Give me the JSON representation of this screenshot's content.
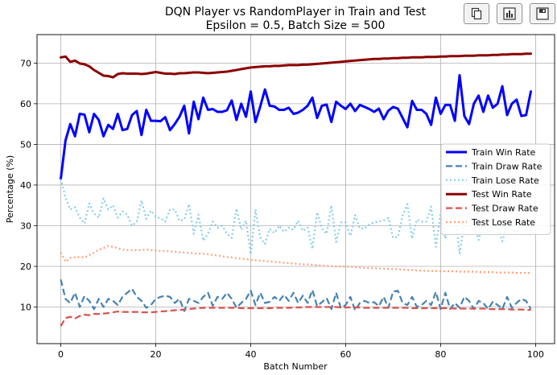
{
  "toolbar": {
    "buttons": [
      {
        "name": "copy-icon"
      },
      {
        "name": "bar-chart-icon"
      },
      {
        "name": "save-icon"
      }
    ]
  },
  "chart_data": {
    "type": "line",
    "title_line1": "DQN Player vs RandomPlayer in Train and Test",
    "title_line2": "Epsilon = 0.5, Batch Size = 500",
    "xlabel": "Batch Number",
    "ylabel": "Percentage (%)",
    "xlim": [
      -5,
      104
    ],
    "ylim": [
      1,
      77
    ],
    "xticks": [
      0,
      20,
      40,
      60,
      80,
      100
    ],
    "yticks": [
      10,
      20,
      30,
      40,
      50,
      60,
      70
    ],
    "grid": true,
    "legend_position": "right-center",
    "series": [
      {
        "name": "Train Win Rate",
        "color": "#0000ff",
        "style": "solid",
        "width": 3,
        "values": [
          41.5,
          51,
          55,
          52,
          57.5,
          57.3,
          53,
          57.5,
          56,
          52,
          54.8,
          53.8,
          57.5,
          53.5,
          53.8,
          57.2,
          58.2,
          52.3,
          58.5,
          55.8,
          55.8,
          55.7,
          56.7,
          53.5,
          55,
          56.8,
          59.5,
          52.7,
          60.5,
          56.2,
          61.5,
          58.5,
          58.7,
          58,
          58,
          58.4,
          60.8,
          56,
          60,
          56.8,
          63,
          55.5,
          59.3,
          63.5,
          59.5,
          59.3,
          58.5,
          58.5,
          59,
          57.5,
          57.8,
          58.5,
          59.5,
          61.5,
          56.5,
          59.5,
          59.8,
          55.5,
          60.5,
          59.5,
          58.7,
          60,
          58.2,
          59.7,
          59.2,
          58.7,
          58,
          58.8,
          56.2,
          58.3,
          59.2,
          58.8,
          56.5,
          54.2,
          60.7,
          58.5,
          58.5,
          57.5,
          54.8,
          61.5,
          57.5,
          59.7,
          59.7,
          55.8,
          67,
          57,
          55,
          60,
          62,
          58,
          62,
          59,
          60,
          64.3,
          57.2,
          60,
          61,
          57,
          57.2,
          63
        ]
      },
      {
        "name": "Train Draw Rate",
        "color": "#4682b4",
        "style": "dashed",
        "width": 2.2,
        "values": [
          16.8,
          12,
          11,
          13.5,
          10,
          12.7,
          11.5,
          9.5,
          12,
          10,
          12,
          11.5,
          10.5,
          12.5,
          13.5,
          14.5,
          12.5,
          11.5,
          9.8,
          10.5,
          12,
          12.5,
          12.8,
          12.5,
          11,
          12,
          9,
          12,
          11.5,
          11,
          12.5,
          13.5,
          10.3,
          12.5,
          12,
          13.5,
          12,
          9.8,
          11,
          12,
          14,
          10.5,
          13.5,
          11,
          11.3,
          12.5,
          11.5,
          13,
          11.5,
          13.5,
          11,
          12.8,
          11,
          14.2,
          10.2,
          11.2,
          12.2,
          9.5,
          13.5,
          9.7,
          10.5,
          12.5,
          9.2,
          11,
          11.5,
          11,
          11.2,
          10.2,
          12.5,
          9.8,
          13.8,
          14,
          11,
          10.5,
          12.5,
          10,
          10.5,
          11.5,
          10.5,
          13.7,
          9.5,
          13.5,
          9.5,
          11,
          9.8,
          12.5,
          11.5,
          9.5,
          11.5,
          11,
          9.5,
          11.3,
          10.5,
          9.5,
          12.5,
          9.8,
          11,
          12,
          11.5,
          9.5
        ]
      },
      {
        "name": "Train Lose Rate",
        "color": "#87ceeb",
        "style": "dotted",
        "width": 2.2,
        "values": [
          41.5,
          37,
          34,
          34.5,
          32,
          30.5,
          35.5,
          33,
          32,
          36.7,
          34,
          35,
          32,
          33.5,
          32.7,
          30,
          31,
          36.2,
          31.7,
          33.7,
          32.2,
          31.8,
          31,
          34,
          34,
          31.2,
          31.5,
          35.3,
          28,
          32.7,
          26.3,
          28,
          31,
          29.5,
          30,
          28,
          27,
          34.2,
          29,
          31.2,
          23,
          34,
          27.2,
          25.5,
          29.2,
          28.2,
          30,
          28.5,
          29.5,
          29,
          31.2,
          28.7,
          29.5,
          24.3,
          33.3,
          29.3,
          28,
          35,
          26,
          30.8,
          30.8,
          27.5,
          32.6,
          29.3,
          29.3,
          30.3,
          30.8,
          31,
          31.3,
          31.9,
          27,
          27.2,
          32.5,
          35.3,
          26.8,
          31.5,
          31,
          31,
          34.7,
          24.8,
          33,
          26.8,
          30.8,
          33.2,
          23.2,
          30.5,
          33.5,
          30.5,
          26.5,
          31,
          28.5,
          29.7,
          29.5,
          26.2,
          30.3,
          30.2,
          28,
          31,
          31.3,
          27.5
        ]
      },
      {
        "name": "Test Win Rate",
        "color": "#8b0000",
        "style": "solid",
        "width": 3,
        "values": [
          71.4,
          71.6,
          70.3,
          70.6,
          69.9,
          69.7,
          69.2,
          68.3,
          67.6,
          66.9,
          66.8,
          66.5,
          67.3,
          67.5,
          67.4,
          67.4,
          67.4,
          67.3,
          67.4,
          67.6,
          67.8,
          67.6,
          67.4,
          67.4,
          67.3,
          67.5,
          67.5,
          67.6,
          67.7,
          67.7,
          67.6,
          67.5,
          67.6,
          67.7,
          67.8,
          67.9,
          68.1,
          68.3,
          68.5,
          68.7,
          68.9,
          69,
          69.1,
          69.2,
          69.2,
          69.3,
          69.3,
          69.4,
          69.5,
          69.5,
          69.5,
          69.6,
          69.6,
          69.7,
          69.8,
          69.9,
          70,
          70.1,
          70.2,
          70.3,
          70.4,
          70.5,
          70.6,
          70.7,
          70.8,
          70.9,
          71,
          71,
          71.1,
          71.1,
          71.2,
          71.2,
          71.3,
          71.3,
          71.4,
          71.4,
          71.4,
          71.5,
          71.5,
          71.5,
          71.6,
          71.6,
          71.7,
          71.7,
          71.7,
          71.8,
          71.8,
          71.8,
          71.9,
          71.9,
          71.9,
          72,
          72,
          72.1,
          72.1,
          72.2,
          72.2,
          72.2,
          72.3,
          72.3
        ]
      },
      {
        "name": "Test Draw Rate",
        "color": "#d9534f",
        "style": "dashed",
        "width": 2.2,
        "values": [
          5.3,
          7.3,
          7.6,
          7.2,
          7.8,
          8.1,
          8,
          8.3,
          8.3,
          8.4,
          8.5,
          8.7,
          8.9,
          8.8,
          8.8,
          8.8,
          8.8,
          8.7,
          8.7,
          8.7,
          8.8,
          8.9,
          9,
          9.1,
          9.2,
          9.3,
          9.4,
          9.5,
          9.6,
          9.7,
          9.8,
          9.8,
          9.8,
          9.8,
          9.8,
          9.8,
          9.8,
          9.8,
          9.7,
          9.7,
          9.7,
          9.7,
          9.7,
          9.7,
          9.7,
          9.8,
          9.8,
          9.8,
          9.8,
          9.9,
          9.9,
          9.9,
          10,
          10,
          10,
          10,
          10,
          10,
          10,
          9.9,
          9.9,
          9.9,
          9.9,
          9.9,
          9.8,
          9.8,
          9.8,
          9.8,
          9.8,
          9.8,
          9.8,
          9.8,
          9.8,
          9.8,
          9.7,
          9.7,
          9.7,
          9.7,
          9.7,
          9.7,
          9.7,
          9.7,
          9.7,
          9.6,
          9.6,
          9.6,
          9.6,
          9.6,
          9.6,
          9.6,
          9.5,
          9.5,
          9.5,
          9.5,
          9.5,
          9.4,
          9.4,
          9.4,
          9.3,
          9.3
        ]
      },
      {
        "name": "Test Lose Rate",
        "color": "#ffa07a",
        "style": "dotted",
        "width": 2.2,
        "values": [
          23.4,
          21.1,
          22.1,
          22.2,
          22.3,
          22.2,
          22.8,
          23.4,
          24.1,
          24.5,
          25,
          24.8,
          24.5,
          24.1,
          24,
          24,
          24,
          24,
          24.2,
          24,
          23.9,
          23.8,
          23.8,
          23.7,
          23.6,
          23.5,
          23.4,
          23.3,
          23.2,
          23.1,
          23.1,
          23,
          22.8,
          22.7,
          22.5,
          22.3,
          22.2,
          22,
          21.9,
          21.8,
          21.6,
          21.5,
          21.4,
          21.3,
          21.2,
          21.1,
          21,
          20.9,
          20.8,
          20.7,
          20.6,
          20.5,
          20.5,
          20.4,
          20.3,
          20.2,
          20.1,
          20.1,
          20,
          20,
          19.9,
          19.9,
          19.8,
          19.7,
          19.6,
          19.6,
          19.5,
          19.5,
          19.4,
          19.4,
          19.3,
          19.3,
          19.2,
          19.1,
          19.1,
          19,
          19,
          18.9,
          18.9,
          18.9,
          18.8,
          18.8,
          18.8,
          18.8,
          18.7,
          18.7,
          18.7,
          18.7,
          18.6,
          18.6,
          18.6,
          18.6,
          18.5,
          18.5,
          18.5,
          18.5,
          18.4,
          18.4,
          18.4,
          18.4
        ]
      }
    ]
  }
}
